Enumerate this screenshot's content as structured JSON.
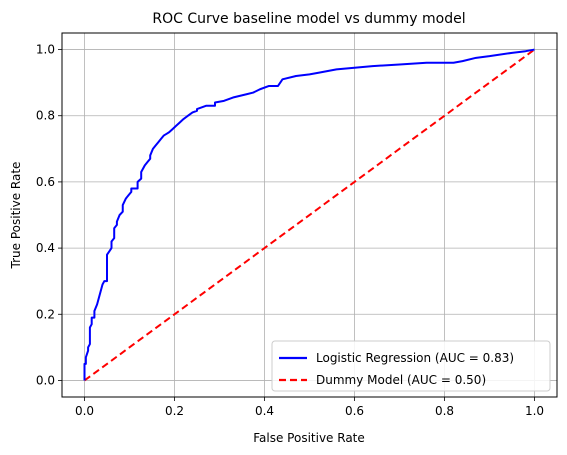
{
  "chart_data": {
    "type": "line",
    "title": "ROC Curve baseline model vs dummy model",
    "xlabel": "False Positive Rate",
    "ylabel": "True Positive Rate",
    "xlim": [
      -0.05,
      1.05
    ],
    "ylim": [
      -0.05,
      1.05
    ],
    "xticks": [
      0.0,
      0.2,
      0.4,
      0.6,
      0.8,
      1.0
    ],
    "yticks": [
      0.0,
      0.2,
      0.4,
      0.6,
      0.8,
      1.0
    ],
    "xtick_labels": [
      "0.0",
      "0.2",
      "0.4",
      "0.6",
      "0.8",
      "1.0"
    ],
    "ytick_labels": [
      "0.0",
      "0.2",
      "0.4",
      "0.6",
      "0.8",
      "1.0"
    ],
    "grid": true,
    "legend_position": "lower-right",
    "series": [
      {
        "name": "Logistic Regression (AUC = 0.83)",
        "color": "#0000ff",
        "style": "solid",
        "x": [
          0.0,
          0.0,
          0.003,
          0.003,
          0.008,
          0.008,
          0.012,
          0.012,
          0.016,
          0.016,
          0.022,
          0.022,
          0.028,
          0.032,
          0.036,
          0.04,
          0.044,
          0.05,
          0.05,
          0.055,
          0.06,
          0.06,
          0.066,
          0.066,
          0.072,
          0.072,
          0.078,
          0.085,
          0.085,
          0.092,
          0.098,
          0.104,
          0.104,
          0.11,
          0.118,
          0.118,
          0.126,
          0.126,
          0.134,
          0.14,
          0.146,
          0.146,
          0.152,
          0.158,
          0.164,
          0.17,
          0.176,
          0.182,
          0.188,
          0.196,
          0.204,
          0.212,
          0.22,
          0.23,
          0.24,
          0.25,
          0.25,
          0.27,
          0.29,
          0.29,
          0.31,
          0.33,
          0.345,
          0.36,
          0.375,
          0.39,
          0.41,
          0.43,
          0.44,
          0.47,
          0.5,
          0.52,
          0.56,
          0.6,
          0.64,
          0.7,
          0.76,
          0.8,
          0.82,
          0.84,
          0.87,
          0.9,
          0.95,
          0.98,
          1.0
        ],
        "y": [
          0.0,
          0.05,
          0.05,
          0.07,
          0.09,
          0.1,
          0.11,
          0.16,
          0.17,
          0.19,
          0.19,
          0.21,
          0.23,
          0.25,
          0.27,
          0.29,
          0.3,
          0.3,
          0.38,
          0.39,
          0.4,
          0.42,
          0.43,
          0.46,
          0.47,
          0.48,
          0.5,
          0.51,
          0.53,
          0.55,
          0.56,
          0.57,
          0.58,
          0.58,
          0.58,
          0.6,
          0.61,
          0.63,
          0.65,
          0.66,
          0.67,
          0.68,
          0.7,
          0.71,
          0.72,
          0.73,
          0.74,
          0.745,
          0.75,
          0.76,
          0.77,
          0.78,
          0.79,
          0.8,
          0.81,
          0.815,
          0.82,
          0.83,
          0.83,
          0.84,
          0.845,
          0.855,
          0.86,
          0.865,
          0.87,
          0.88,
          0.89,
          0.89,
          0.91,
          0.92,
          0.925,
          0.93,
          0.94,
          0.945,
          0.95,
          0.955,
          0.96,
          0.96,
          0.96,
          0.965,
          0.975,
          0.98,
          0.99,
          0.995,
          1.0
        ]
      },
      {
        "name": "Dummy Model (AUC = 0.50)",
        "color": "#ff0000",
        "style": "dashed",
        "x": [
          0.0,
          1.0
        ],
        "y": [
          0.0,
          1.0
        ]
      }
    ]
  }
}
